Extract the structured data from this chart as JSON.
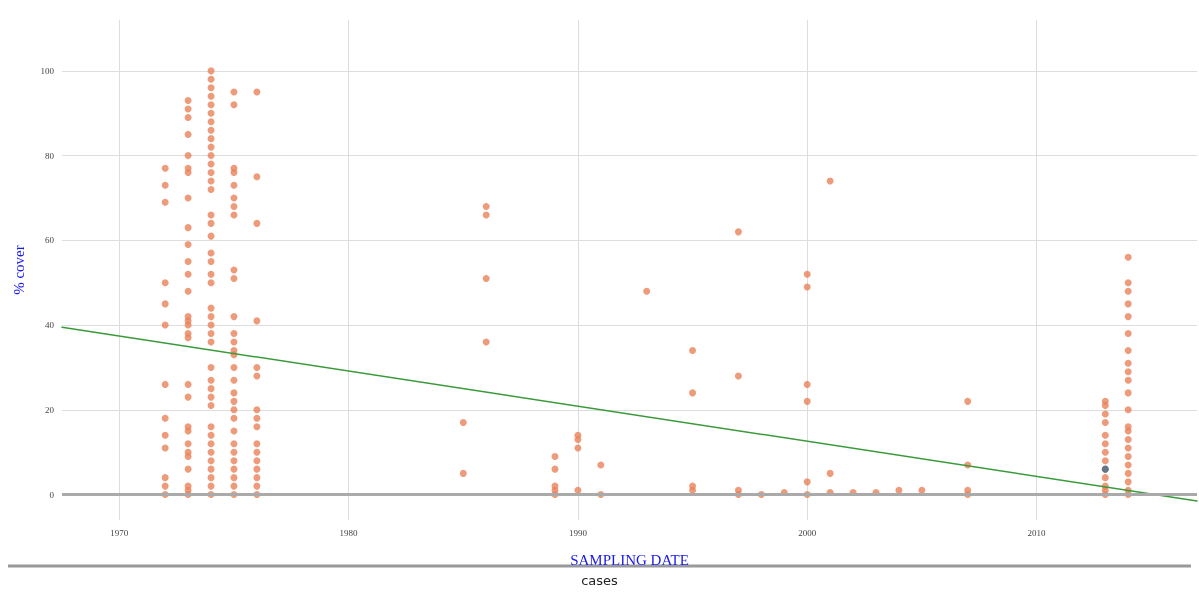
{
  "chart_data": {
    "type": "scatter",
    "xlabel": "SAMPLING DATE",
    "ylabel": "% cover",
    "annotations": [
      "cases"
    ],
    "xlim": [
      1967.5,
      2017
    ],
    "xticks": [
      1970,
      1980,
      1990,
      2000,
      2010
    ],
    "ylim": [
      -6,
      112
    ],
    "yticks": [
      0,
      20,
      40,
      60,
      80,
      100
    ],
    "grid": true,
    "marker": "circle",
    "ref_lines": [
      {
        "axis": "y",
        "value": 0,
        "color": "#aaaaaa"
      }
    ],
    "series": [
      {
        "color": "#e8825a",
        "x": [
          1972,
          1972,
          1972,
          1972,
          1972,
          1972,
          1972,
          1972,
          1972,
          1972,
          1972,
          1972,
          1972,
          1973,
          1973,
          1973,
          1973,
          1973,
          1973,
          1973,
          1973,
          1973,
          1973,
          1973,
          1973,
          1973,
          1973,
          1973,
          1973,
          1973,
          1973,
          1973,
          1973,
          1973,
          1973,
          1973,
          1973,
          1973,
          1973,
          1973,
          1973,
          1973,
          1974,
          1974,
          1974,
          1974,
          1974,
          1974,
          1974,
          1974,
          1974,
          1974,
          1974,
          1974,
          1974,
          1974,
          1974,
          1974,
          1974,
          1974,
          1974,
          1974,
          1974,
          1974,
          1974,
          1974,
          1974,
          1974,
          1974,
          1974,
          1974,
          1974,
          1974,
          1974,
          1974,
          1974,
          1974,
          1974,
          1974,
          1974,
          1974,
          1974,
          1974,
          1975,
          1975,
          1975,
          1975,
          1975,
          1975,
          1975,
          1975,
          1975,
          1975,
          1975,
          1975,
          1975,
          1975,
          1975,
          1975,
          1975,
          1975,
          1975,
          1975,
          1975,
          1975,
          1975,
          1975,
          1975,
          1975,
          1975,
          1975,
          1975,
          1976,
          1976,
          1976,
          1976,
          1976,
          1976,
          1976,
          1976,
          1976,
          1976,
          1976,
          1976,
          1976,
          1976,
          1976,
          1976,
          1985,
          1985,
          1986,
          1986,
          1986,
          1986,
          1989,
          1989,
          1989,
          1989,
          1989,
          1990,
          1990,
          1990,
          1990,
          1991,
          1991,
          1993,
          1995,
          1995,
          1995,
          1995,
          1997,
          1997,
          1997,
          1997,
          1998,
          1999,
          2000,
          2000,
          2000,
          2000,
          2000,
          2000,
          2001,
          2001,
          2001,
          2002,
          2003,
          2004,
          2005,
          2007,
          2007,
          2007,
          2007,
          2013,
          2013,
          2013,
          2013,
          2013,
          2013,
          2013,
          2013,
          2013,
          2013,
          2013,
          2013,
          2013,
          2014,
          2014,
          2014,
          2014,
          2014,
          2014,
          2014,
          2014,
          2014,
          2014,
          2014,
          2014,
          2014,
          2014,
          2014,
          2014,
          2014,
          2014,
          2014,
          2014,
          2014,
          2014
        ],
        "values": [
          77,
          73,
          69,
          50,
          45,
          40,
          26,
          18,
          14,
          11,
          4,
          2,
          0,
          93,
          91,
          89,
          85,
          80,
          77,
          76,
          70,
          63,
          59,
          55,
          52,
          48,
          42,
          41,
          40,
          38,
          37,
          26,
          23,
          16,
          15,
          12,
          10,
          9,
          6,
          2,
          1,
          0,
          100,
          98,
          96,
          94,
          92,
          90,
          88,
          86,
          84,
          82,
          80,
          78,
          76,
          74,
          72,
          66,
          64,
          61,
          57,
          55,
          52,
          50,
          44,
          42,
          40,
          38,
          36,
          30,
          27,
          25,
          23,
          21,
          16,
          14,
          12,
          10,
          8,
          6,
          4,
          2,
          0,
          95,
          92,
          77,
          76,
          73,
          70,
          68,
          66,
          53,
          51,
          42,
          38,
          36,
          34,
          33,
          30,
          27,
          24,
          22,
          20,
          18,
          15,
          12,
          10,
          8,
          6,
          4,
          2,
          0,
          95,
          75,
          64,
          41,
          30,
          28,
          20,
          18,
          16,
          12,
          10,
          8,
          6,
          4,
          2,
          0,
          17,
          5,
          68,
          66,
          51,
          36,
          9,
          6,
          2,
          1,
          0,
          14,
          13,
          11,
          1,
          7,
          0,
          48,
          34,
          24,
          2,
          1,
          62,
          28,
          1,
          0,
          0,
          0.5,
          52,
          49,
          26,
          22,
          3,
          0,
          74,
          5,
          0.5,
          0.5,
          0.5,
          1,
          1,
          22,
          7,
          1,
          0,
          22,
          21,
          19,
          17,
          14,
          12,
          10,
          8,
          6,
          4,
          2,
          1,
          0,
          56,
          50,
          48,
          45,
          42,
          38,
          34,
          31,
          29,
          27,
          24,
          20,
          16,
          15,
          13,
          11,
          9,
          7,
          5,
          3,
          1,
          0
        ]
      },
      {
        "color": "#3d6f8e",
        "x": [
          2013
        ],
        "values": [
          6
        ]
      },
      {
        "type": "line",
        "marker": "none",
        "color": "#3a9a3a",
        "x": [
          1967.5,
          2017
        ],
        "values": [
          39.5,
          -1.5
        ]
      }
    ]
  }
}
